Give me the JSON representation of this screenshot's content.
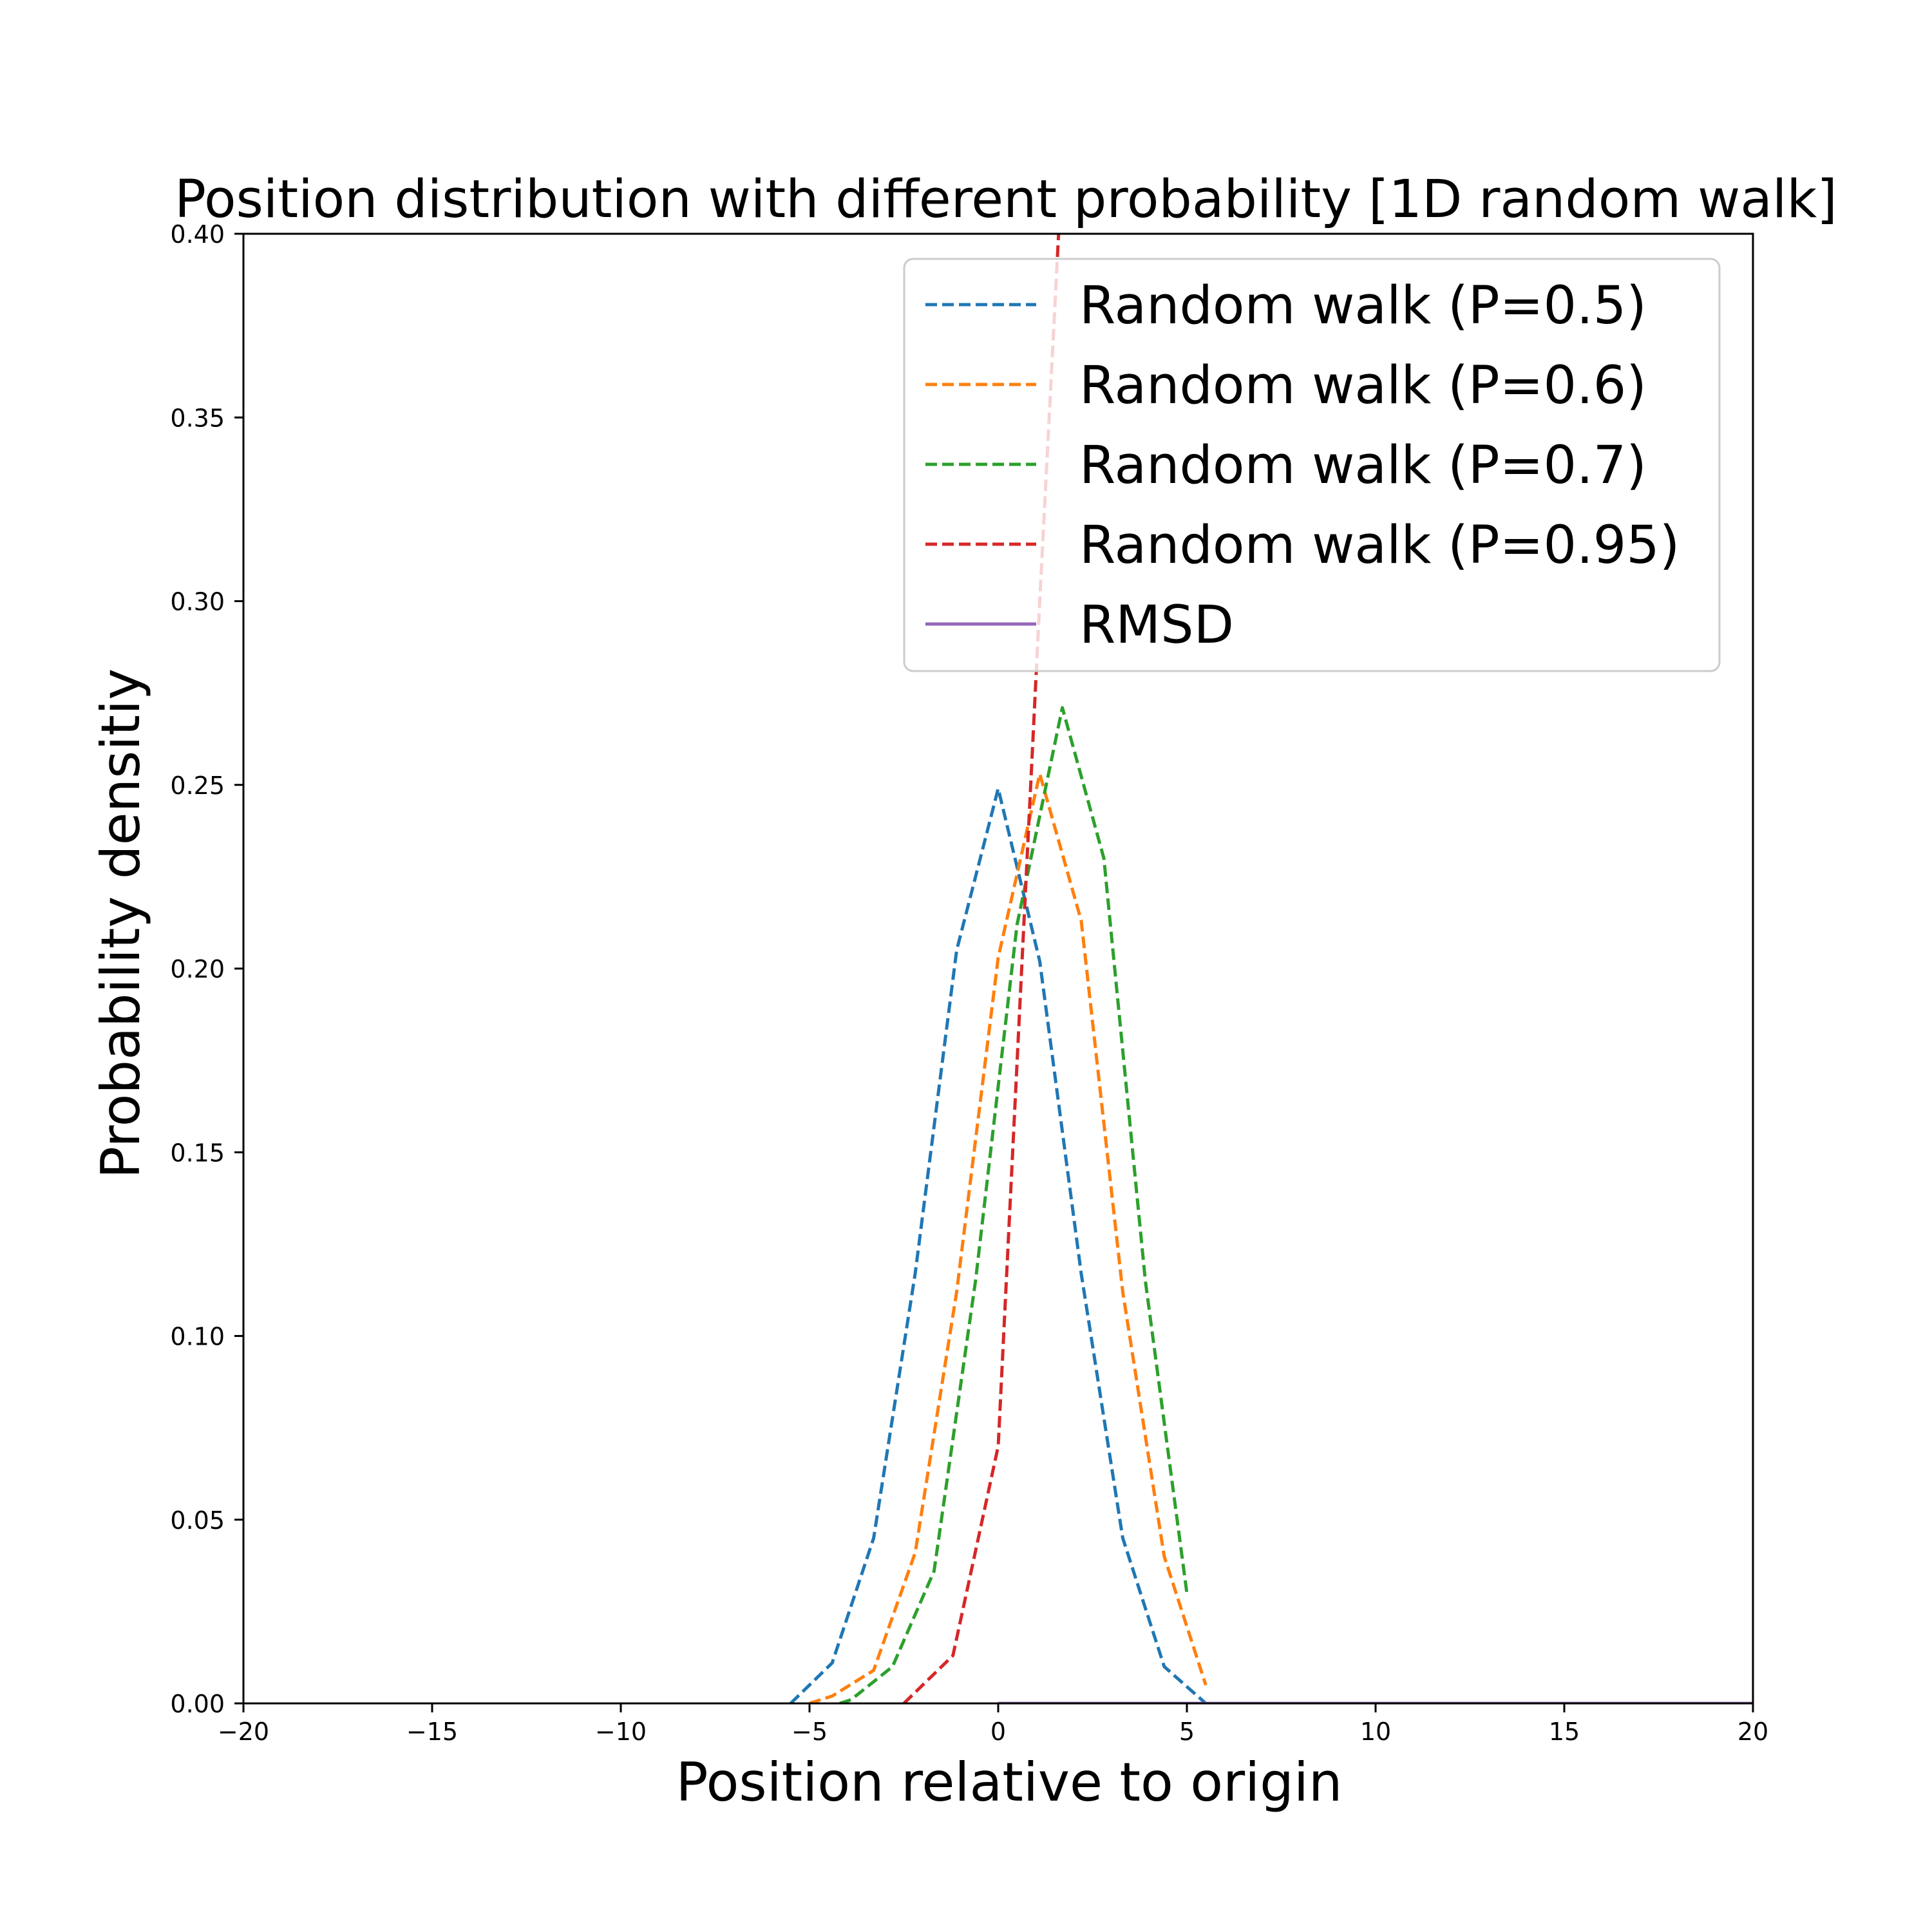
{
  "chart_data": {
    "type": "line",
    "title": "Position distribution with different probability [1D random walk]",
    "xlabel": "Position relative to origin",
    "ylabel": "Probability densitiy",
    "xlim": [
      -20,
      20
    ],
    "ylim": [
      0,
      0.4
    ],
    "x_ticks": [
      -20,
      -15,
      -10,
      -5,
      0,
      5,
      10,
      15,
      20
    ],
    "x_tick_labels": [
      "−20",
      "−15",
      "−10",
      "−5",
      "0",
      "5",
      "10",
      "15",
      "20"
    ],
    "y_ticks": [
      0.0,
      0.05,
      0.1,
      0.15,
      0.2,
      0.25,
      0.3,
      0.35,
      0.4
    ],
    "y_tick_labels": [
      "0.00",
      "0.05",
      "0.10",
      "0.15",
      "0.20",
      "0.25",
      "0.30",
      "0.35",
      "0.40"
    ],
    "grid": false,
    "legend_position": "upper right",
    "series": [
      {
        "name": "Random walk (P=0.5)",
        "color": "#1f77b4",
        "style": "dashed",
        "x": [
          -5.5,
          -4.4,
          -3.3,
          -2.2,
          -1.1,
          0.0,
          1.1,
          2.2,
          3.3,
          4.4,
          5.5
        ],
        "y": [
          0.0,
          0.011,
          0.045,
          0.117,
          0.205,
          0.249,
          0.202,
          0.117,
          0.045,
          0.01,
          0.0
        ]
      },
      {
        "name": "Random walk (P=0.6)",
        "color": "#ff7f0e",
        "style": "dashed",
        "x": [
          -5.0,
          -4.4,
          -3.3,
          -2.2,
          -1.1,
          0.0,
          1.1,
          2.2,
          3.3,
          4.4,
          5.5
        ],
        "y": [
          0.0,
          0.002,
          0.009,
          0.041,
          0.112,
          0.203,
          0.253,
          0.213,
          0.112,
          0.04,
          0.005
        ]
      },
      {
        "name": "Random walk (P=0.7)",
        "color": "#2ca02c",
        "style": "dashed",
        "x": [
          -4.2,
          -3.9,
          -2.8,
          -1.7,
          -0.6,
          0.5,
          1.7,
          2.8,
          3.9,
          5.0
        ],
        "y": [
          0.0,
          0.001,
          0.01,
          0.036,
          0.115,
          0.212,
          0.271,
          0.23,
          0.115,
          0.03
        ]
      },
      {
        "name": "Random walk (P=0.95)",
        "color": "#d62728",
        "style": "dashed",
        "x": [
          -2.5,
          -1.2,
          0.0,
          1.1,
          1.6
        ],
        "y": [
          0.0,
          0.013,
          0.07,
          0.3,
          0.4
        ]
      },
      {
        "name": "RMSD",
        "color": "#9467bd",
        "style": "solid",
        "x": [
          0,
          20
        ],
        "y": [
          0.0,
          0.0
        ]
      }
    ]
  }
}
